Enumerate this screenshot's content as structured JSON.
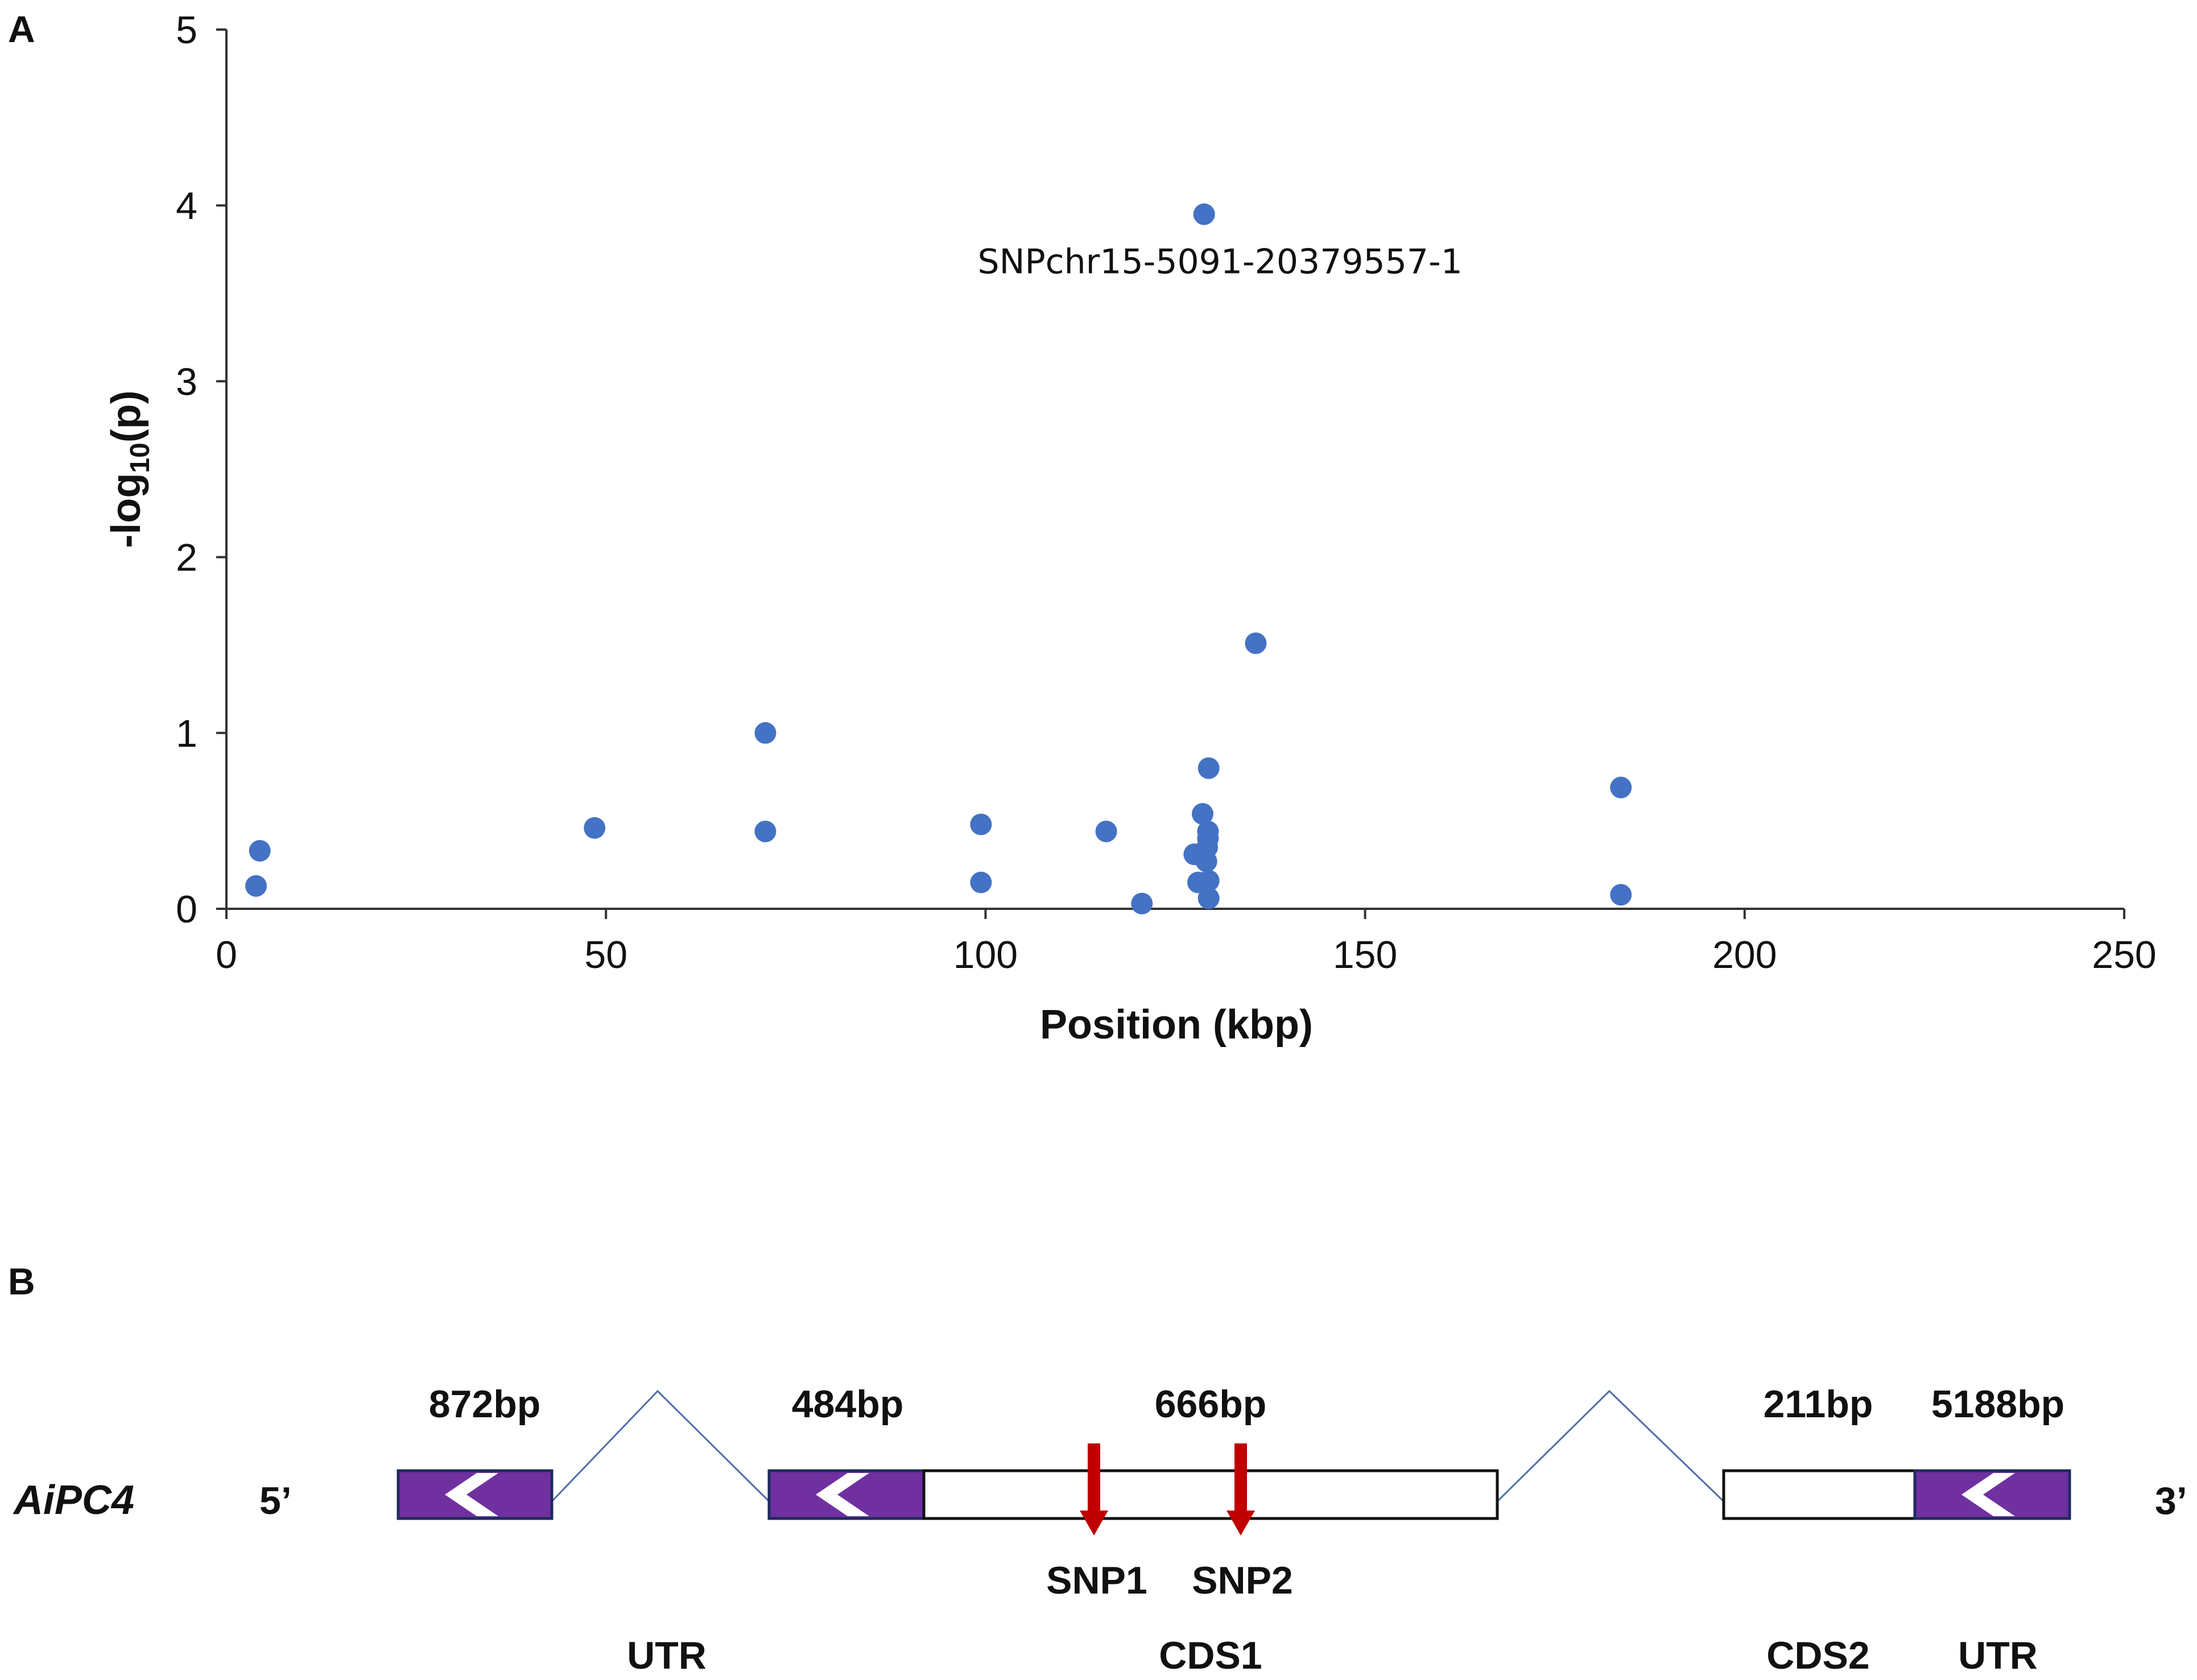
{
  "panels": {
    "a": "A",
    "b": "B"
  },
  "chart_data": {
    "type": "scatter",
    "title": "",
    "xlabel": "Position (kbp)",
    "ylabel": "-log",
    "ylabel_sub": "10",
    "ylabel_tail": "(p)",
    "xlim": [
      0,
      250
    ],
    "ylim": [
      0,
      5
    ],
    "xticks": [
      "0",
      "50",
      "100",
      "150",
      "200",
      "250"
    ],
    "yticks": [
      "0",
      "1",
      "2",
      "3",
      "4",
      "5"
    ],
    "point_color": "#4472C4",
    "annotation": {
      "text": "SNPchr15-5091-20379557-1",
      "x": 128.8,
      "y": 3.95
    },
    "points": [
      {
        "x": 3.9,
        "y": 0.13
      },
      {
        "x": 4.4,
        "y": 0.33
      },
      {
        "x": 48.5,
        "y": 0.46
      },
      {
        "x": 71.0,
        "y": 1.0
      },
      {
        "x": 71.0,
        "y": 0.44
      },
      {
        "x": 99.4,
        "y": 0.48
      },
      {
        "x": 99.4,
        "y": 0.15
      },
      {
        "x": 115.9,
        "y": 0.44
      },
      {
        "x": 120.6,
        "y": 0.03
      },
      {
        "x": 127.5,
        "y": 0.31
      },
      {
        "x": 128.0,
        "y": 0.15
      },
      {
        "x": 128.5,
        "y": 0.3
      },
      {
        "x": 128.6,
        "y": 0.54
      },
      {
        "x": 129.1,
        "y": 0.27
      },
      {
        "x": 129.2,
        "y": 0.35
      },
      {
        "x": 129.3,
        "y": 0.4
      },
      {
        "x": 129.3,
        "y": 0.44
      },
      {
        "x": 129.4,
        "y": 0.16
      },
      {
        "x": 129.4,
        "y": 0.06
      },
      {
        "x": 129.4,
        "y": 0.8
      },
      {
        "x": 128.8,
        "y": 3.95
      },
      {
        "x": 135.6,
        "y": 1.51
      },
      {
        "x": 183.7,
        "y": 0.69
      },
      {
        "x": 183.7,
        "y": 0.08
      }
    ]
  },
  "gene": {
    "name": "AiPC4",
    "five_prime": "5’",
    "three_prime": "3’",
    "utr_color": "#7030A0",
    "snp_color": "#C00000",
    "sizes": [
      "872bp",
      "484bp",
      "666bp",
      "211bp",
      "5188bp"
    ],
    "snps": [
      "SNP1",
      "SNP2"
    ],
    "regions": [
      "UTR",
      "CDS1",
      "CDS2",
      "UTR"
    ]
  }
}
